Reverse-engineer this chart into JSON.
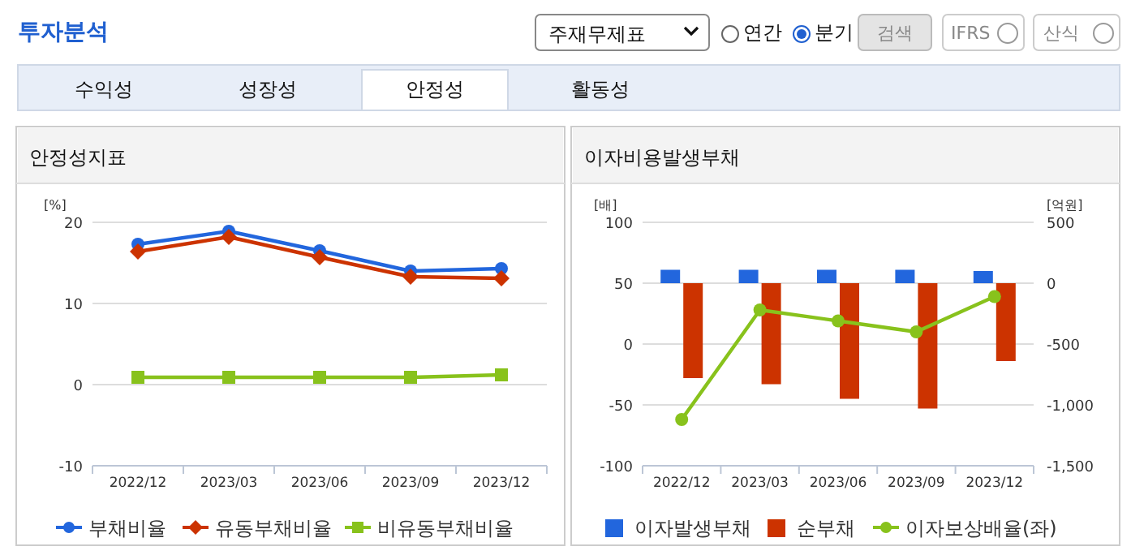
{
  "chart_data": [
    {
      "type": "other",
      "title": "투자분석",
      "annotations": [
        "주재무제표",
        "연간",
        "분기",
        "검색",
        "IFRS",
        "산식",
        "수익성",
        "성장성",
        "안정성",
        "활동성"
      ]
    },
    {
      "type": "line",
      "title": "안정성지표",
      "ylabel": "[%]",
      "categories": [
        "2022/12",
        "2023/03",
        "2023/06",
        "2023/09",
        "2023/12"
      ],
      "ylim": [
        -10,
        20
      ],
      "yticks": [
        -10,
        0,
        10,
        20
      ],
      "grid": "y",
      "legend": "bottom",
      "series": [
        {
          "name": "부채비율",
          "color": "#2266dd",
          "marker": "circle",
          "values": [
            17.3,
            18.9,
            16.5,
            14.0,
            14.3
          ]
        },
        {
          "name": "유동부채비율",
          "color": "#cc3300",
          "marker": "diamond",
          "values": [
            16.4,
            18.2,
            15.7,
            13.3,
            13.1
          ]
        },
        {
          "name": "비유동부채비율",
          "color": "#88c21c",
          "marker": "square",
          "values": [
            0.9,
            0.9,
            0.9,
            0.9,
            1.2
          ]
        }
      ]
    },
    {
      "type": "bar",
      "title": "이자비용발생부채",
      "ylabel": "[배]",
      "y2label": "[억원]",
      "categories": [
        "2022/12",
        "2023/03",
        "2023/06",
        "2023/09",
        "2023/12"
      ],
      "ylim": [
        -100,
        100
      ],
      "yticks": [
        -100,
        -50,
        0,
        50,
        100
      ],
      "y2lim": [
        -1500,
        500
      ],
      "y2ticks": [
        {
          "value": -1500,
          "label": "-1,500"
        },
        {
          "value": -1000,
          "label": "-1,000"
        },
        -500,
        0,
        500
      ],
      "grid": "y",
      "legend": "bottom",
      "series": [
        {
          "name": "이자발생부채",
          "color": "#2266dd",
          "axis": "y2",
          "values": [
            110,
            110,
            110,
            110,
            100
          ]
        },
        {
          "name": "순부채",
          "color": "#cc3300",
          "axis": "y2",
          "values": [
            -780,
            -830,
            -950,
            -1030,
            -640
          ]
        },
        {
          "name": "이자보상배율(좌)",
          "color": "#88c21c",
          "type": "line",
          "axis": "y",
          "marker": "circle",
          "values": [
            -62,
            28,
            19,
            10,
            39
          ]
        }
      ]
    }
  ]
}
